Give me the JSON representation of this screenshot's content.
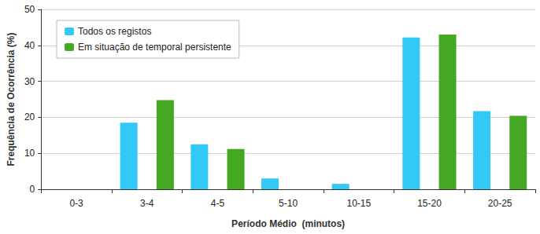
{
  "chart_data": {
    "type": "bar",
    "x_label": "Período Médio  (minutos)",
    "y_label": "Frequência de Ocorrência (%)",
    "categories": [
      "0-3",
      "3-4",
      "4-5",
      "5-10",
      "10-15",
      "15-20",
      "20-25"
    ],
    "series": [
      {
        "name": "Todos os registos",
        "color": "#33c8f5",
        "values": [
          0,
          18.5,
          12.5,
          3,
          1.5,
          42.2,
          21.7
        ]
      },
      {
        "name": "Em situação de temporal persistente",
        "color": "#44a822",
        "values": [
          0,
          24.8,
          11.2,
          0,
          0,
          43,
          20.4
        ]
      }
    ],
    "ylim": [
      0,
      50
    ],
    "yticks": [
      0,
      10,
      20,
      30,
      40,
      50
    ],
    "grid": true,
    "legend": "upper left"
  }
}
